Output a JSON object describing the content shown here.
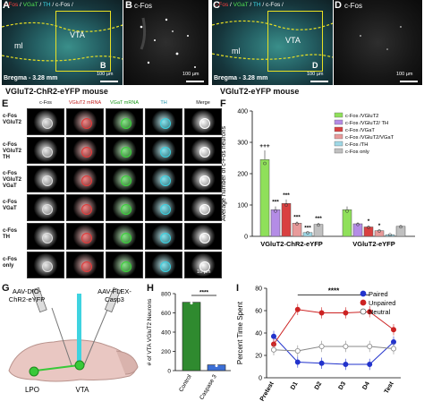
{
  "panels": {
    "A": {
      "letter": "A",
      "label_ml": "ml",
      "label_vta": "VTA",
      "box_letter": "B",
      "bregma": "Bregma - 3.28 mm",
      "scale": "100 µm",
      "header_red": "c-Fos",
      "header_sep1": " / ",
      "header_green": "VGaT",
      "header_sep2": " / ",
      "header_cyan": "TH",
      "header_sep3": " / ",
      "header_white": "c-Fos /"
    },
    "B": {
      "letter": "B",
      "title": "c-Fos",
      "scale": "100 µm"
    },
    "C": {
      "letter": "C",
      "label_ml": "ml",
      "label_vta": "VTA",
      "box_letter": "D",
      "bregma": "Bregma - 3.28 mm",
      "scale": "100 µm",
      "header_red": "c-Fos",
      "header_sep1": " / ",
      "header_green": "VGaT",
      "header_sep2": " / ",
      "header_cyan": "TH",
      "header_sep3": " / ",
      "header_white": "c-Fos /"
    },
    "D": {
      "letter": "D",
      "title": "c-Fos",
      "scale": "100 µm"
    },
    "caption_left": "VGluT2-ChR2-eYFP mouse",
    "caption_right": "VGluT2-eYFP mouse",
    "E": {
      "letter": "E",
      "columns": [
        "c-Fos",
        "VGluT2 mRNA",
        "VGaT mRNA",
        "TH",
        "Merge"
      ],
      "rows": [
        "c-Fos\nVGluT2",
        "c-Fos\nVGluT2\nTH",
        "c-Fos\nVGluT2\nVGaT",
        "c-Fos\nVGaT",
        "c-Fos\nTH",
        "c-Fos\nonly"
      ],
      "scale": "10 µm"
    },
    "G": {
      "letter": "G",
      "virus1": "AAV-DIO-\nChR2-eYFP",
      "virus2": "AAV-FLEX-\nCasp3",
      "region1": "LPO",
      "region2": "VTA"
    },
    "H": {
      "letter": "H",
      "significance": "****"
    },
    "I": {
      "letter": "I",
      "significance": "****"
    }
  },
  "chart_data": [
    {
      "id": "F",
      "type": "bar",
      "letter": "F",
      "ylabel": "Average number of c-Fos neurons",
      "ylim": [
        0,
        400
      ],
      "yticks": [
        0,
        100,
        200,
        300,
        400
      ],
      "groups": [
        "VGluT2-ChR2-eYFP",
        "VGluT2-eYFP"
      ],
      "series": [
        {
          "name": "c-Fos /VGluT2",
          "color": "#8fe05a",
          "values": [
            245,
            85
          ]
        },
        {
          "name": "c-Fos /VGluT2/ TH",
          "color": "#b48ce6",
          "values": [
            85,
            40
          ]
        },
        {
          "name": "c-Fos /VGaT",
          "color": "#d94040",
          "values": [
            105,
            30
          ]
        },
        {
          "name": "c-Fos /VGluT2/VGaT",
          "color": "#e89a9a",
          "values": [
            42,
            18
          ]
        },
        {
          "name": "c-Fos /TH",
          "color": "#9fd8e6",
          "values": [
            12,
            5
          ]
        },
        {
          "name": "c-Fos only",
          "color": "#c0c0c0",
          "values": [
            38,
            32
          ]
        }
      ],
      "significance": [
        "+++",
        "***",
        "***",
        "***",
        "***",
        "***",
        "*",
        "*"
      ]
    },
    {
      "id": "H",
      "type": "bar",
      "ylabel": "# of VTA VGluT2 Neurons",
      "ylim": [
        0,
        800
      ],
      "yticks": [
        0,
        200,
        400,
        600,
        800
      ],
      "categories": [
        "Control",
        "Caspase 3"
      ],
      "colors": [
        "#2f8a2f",
        "#3c6fd6"
      ],
      "values": [
        710,
        60
      ]
    },
    {
      "id": "I",
      "type": "line",
      "ylabel": "Percent Time Spent",
      "ylim": [
        0,
        80
      ],
      "yticks": [
        0,
        20,
        40,
        60,
        80
      ],
      "categories": [
        "Pretest",
        "D1",
        "D2",
        "D3",
        "D4",
        "Test"
      ],
      "series": [
        {
          "name": "Paired",
          "color": "#2233cc",
          "values": [
            37,
            14,
            13,
            12,
            12,
            32
          ]
        },
        {
          "name": "Unpaired",
          "color": "#cc2222",
          "values": [
            30,
            61,
            58,
            58,
            59,
            43
          ]
        },
        {
          "name": "Neutral",
          "color": "#888888",
          "values": [
            25,
            24,
            28,
            28,
            28,
            26
          ]
        }
      ]
    }
  ]
}
